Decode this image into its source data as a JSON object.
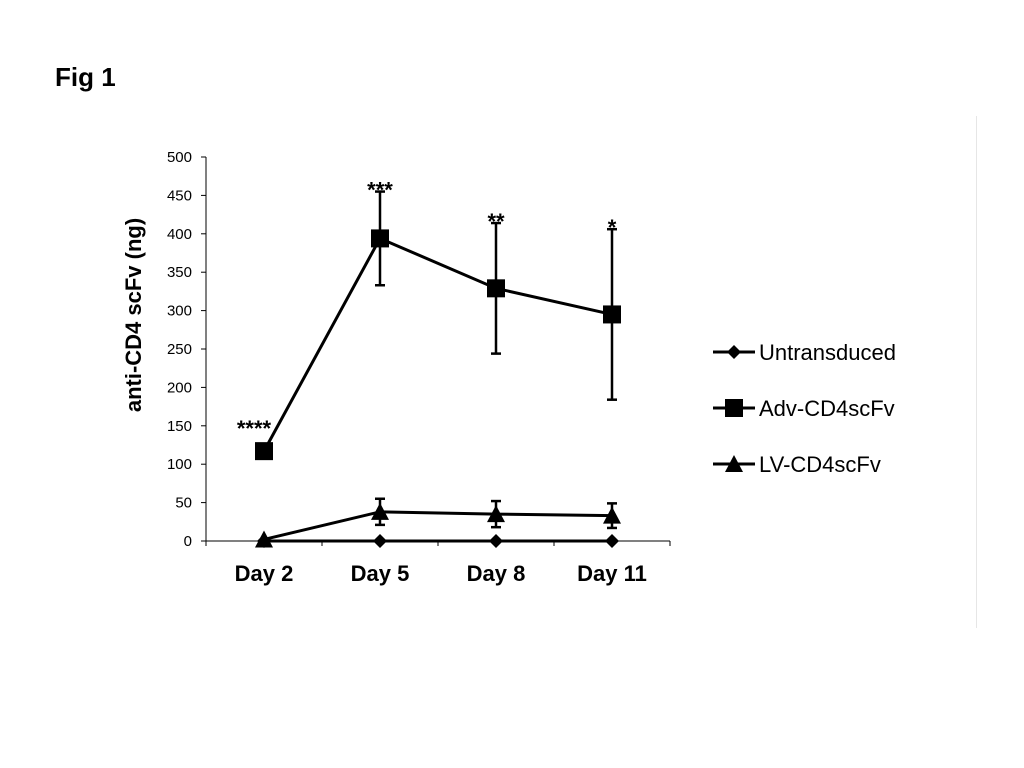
{
  "figure": {
    "label": "Fig 1"
  },
  "chart_data": {
    "type": "line",
    "title": "",
    "xlabel": "",
    "ylabel": "anti-CD4 scFv (ng)",
    "categories": [
      "Day 2",
      "Day 5",
      "Day 8",
      "Day 11"
    ],
    "ylim": [
      0,
      500
    ],
    "yticks": [
      0,
      50,
      100,
      150,
      200,
      250,
      300,
      350,
      400,
      450,
      500
    ],
    "grid": false,
    "legend_position": "right",
    "series": [
      {
        "name": "Untransduced",
        "marker": "diamond",
        "values": [
          0,
          0,
          0,
          0
        ],
        "errors": [
          0,
          0,
          0,
          0
        ]
      },
      {
        "name": "Adv-CD4scFv",
        "marker": "square",
        "values": [
          117,
          394,
          329,
          295
        ],
        "errors": [
          0,
          61,
          85,
          111
        ]
      },
      {
        "name": "LV-CD4scFv",
        "marker": "triangle",
        "values": [
          2,
          38,
          35,
          33
        ],
        "errors": [
          0,
          17,
          17,
          16
        ]
      }
    ],
    "annotations": [
      {
        "category": "Day 2",
        "text": "****"
      },
      {
        "category": "Day 5",
        "text": "***"
      },
      {
        "category": "Day 8",
        "text": "**"
      },
      {
        "category": "Day 11",
        "text": "*"
      }
    ],
    "colors": {
      "line": "#000000",
      "axis": "#000000"
    }
  }
}
